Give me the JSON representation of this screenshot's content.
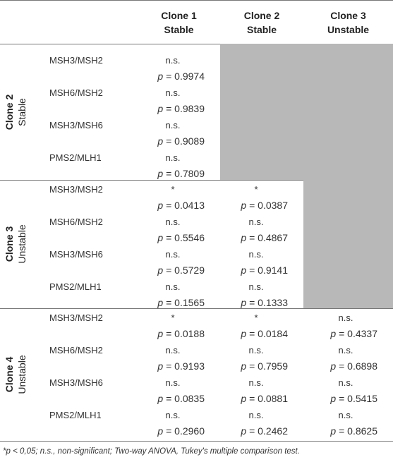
{
  "table": {
    "columns": [
      [
        "Clone 1",
        "Stable"
      ],
      [
        "Clone 2",
        "Stable"
      ],
      [
        "Clone 3",
        "Unstable"
      ]
    ],
    "groups": [
      {
        "label": [
          "Clone 2",
          "Stable"
        ],
        "rows": [
          {
            "ratio": "MSH3/MSH2",
            "cells": [
              {
                "sig": "n.s.",
                "stat": "p",
                "rel": "=",
                "value": "0.9974"
              },
              null,
              null
            ]
          },
          {
            "ratio": "MSH6/MSH2",
            "cells": [
              {
                "sig": "n.s.",
                "stat": "p",
                "rel": "=",
                "value": "0.9839"
              },
              null,
              null
            ]
          },
          {
            "ratio": "MSH3/MSH6",
            "cells": [
              {
                "sig": "n.s.",
                "stat": "p",
                "rel": "=",
                "value": "0.9089"
              },
              null,
              null
            ]
          },
          {
            "ratio": "PMS2/MLH1",
            "cells": [
              {
                "sig": "n.s.",
                "stat": "p",
                "rel": "=",
                "value": "0.7809"
              },
              null,
              null
            ]
          }
        ]
      },
      {
        "label": [
          "Clone 3",
          "Unstable"
        ],
        "rows": [
          {
            "ratio": "MSH3/MSH2",
            "cells": [
              {
                "sig": "*",
                "stat": "p",
                "rel": "=",
                "value": "0.0413"
              },
              {
                "sig": "*",
                "stat": "p",
                "rel": "=",
                "value": "0.0387"
              },
              null
            ]
          },
          {
            "ratio": "MSH6/MSH2",
            "cells": [
              {
                "sig": "n.s.",
                "stat": "p",
                "rel": "=",
                "value": "0.5546"
              },
              {
                "sig": "n.s.",
                "stat": "p",
                "rel": "=",
                "value": "0.4867"
              },
              null
            ]
          },
          {
            "ratio": "MSH3/MSH6",
            "cells": [
              {
                "sig": "n.s.",
                "stat": "p",
                "rel": "=",
                "value": "0.5729"
              },
              {
                "sig": "n.s.",
                "stat": "p",
                "rel": "=",
                "value": "0.9141"
              },
              null
            ]
          },
          {
            "ratio": "PMS2/MLH1",
            "cells": [
              {
                "sig": "n.s.",
                "stat": "p",
                "rel": "=",
                "value": "0.1565"
              },
              {
                "sig": "n.s.",
                "stat": "p",
                "rel": "=",
                "value": "0.1333"
              },
              null
            ]
          }
        ]
      },
      {
        "label": [
          "Clone 4",
          "Unstable"
        ],
        "rows": [
          {
            "ratio": "MSH3/MSH2",
            "cells": [
              {
                "sig": "*",
                "stat": "p",
                "rel": "=",
                "value": "0.0188"
              },
              {
                "sig": "*",
                "stat": "p",
                "rel": "=",
                "value": "0.0184"
              },
              {
                "sig": "n.s.",
                "stat": "p",
                "rel": "=",
                "value": "0.4337"
              }
            ]
          },
          {
            "ratio": "MSH6/MSH2",
            "cells": [
              {
                "sig": "n.s.",
                "stat": "p",
                "rel": "=",
                "value": "0.9193"
              },
              {
                "sig": "n.s.",
                "stat": "p",
                "rel": "=",
                "value": "0.7959"
              },
              {
                "sig": "n.s.",
                "stat": "p",
                "rel": "=",
                "value": "0.6898"
              }
            ]
          },
          {
            "ratio": "MSH3/MSH6",
            "cells": [
              {
                "sig": "n.s.",
                "stat": "p",
                "rel": "=",
                "value": "0.0835"
              },
              {
                "sig": "n.s.",
                "stat": "p",
                "rel": "=",
                "value": "0.0881"
              },
              {
                "sig": "n.s.",
                "stat": "p",
                "rel": "=",
                "value": "0.5415"
              }
            ]
          },
          {
            "ratio": "PMS2/MLH1",
            "cells": [
              {
                "sig": "n.s.",
                "stat": "p",
                "rel": "=",
                "value": "0.2960"
              },
              {
                "sig": "n.s.",
                "stat": "p",
                "rel": "=",
                "value": "0.2462"
              },
              {
                "sig": "n.s.",
                "stat": "p",
                "rel": "=",
                "value": "0.8625"
              }
            ]
          }
        ]
      }
    ],
    "footnote": "*p < 0,05; n.s., non-significant; Two-way ANOVA, Tukey's multiple comparison test."
  }
}
